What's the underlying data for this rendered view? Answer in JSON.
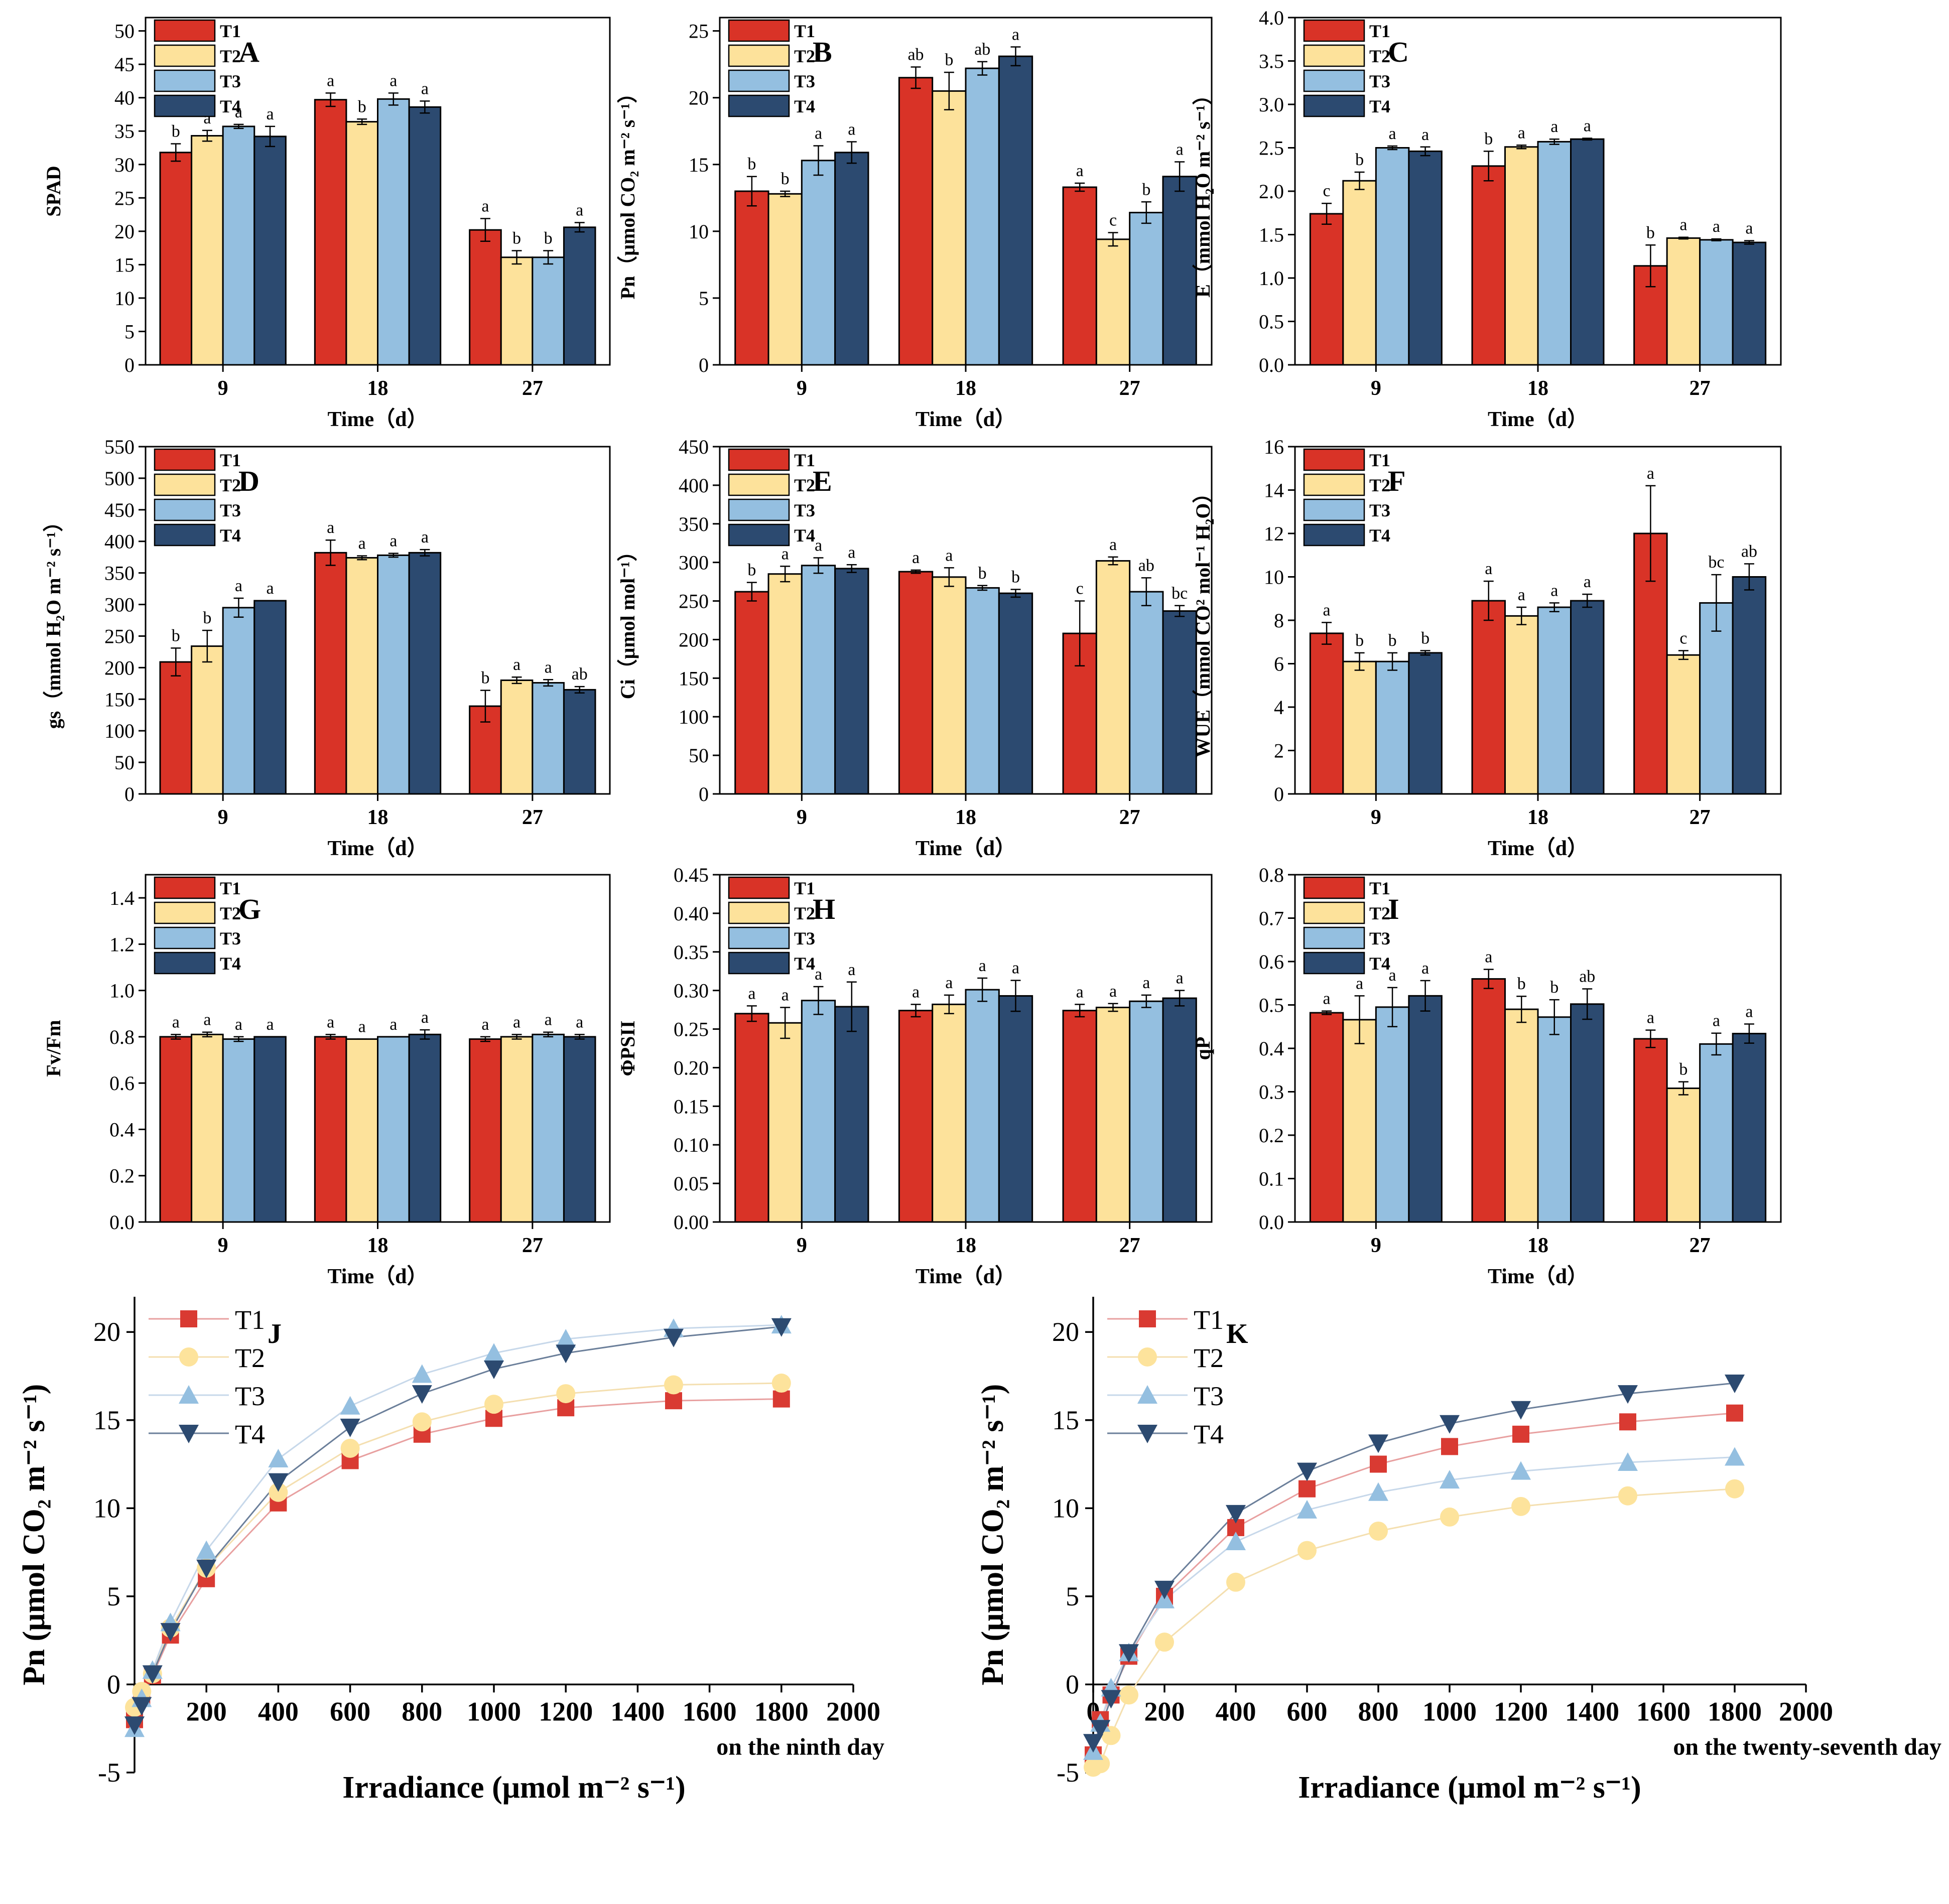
{
  "colors": {
    "T1": "#d93327",
    "T2": "#fde29b",
    "T3": "#94bfe0",
    "T4": "#2c4a70"
  },
  "chart_data": [
    {
      "id": "A",
      "type": "bar",
      "panel_label": "A",
      "xlabel": "Time（d）",
      "ylabel": "SPAD",
      "categories": [
        "9",
        "18",
        "27"
      ],
      "ylim": [
        0,
        52
      ],
      "yticks": [
        0,
        5,
        10,
        15,
        20,
        25,
        30,
        35,
        40,
        45,
        50
      ],
      "series": [
        {
          "name": "T1",
          "values": [
            31.8,
            39.7,
            20.2
          ],
          "errors": [
            1.3,
            1.0,
            1.7
          ],
          "letters": [
            "b",
            "a",
            "a"
          ]
        },
        {
          "name": "T2",
          "values": [
            34.3,
            36.4,
            16.1
          ],
          "errors": [
            0.8,
            0.4,
            1.0
          ],
          "letters": [
            "a",
            "b",
            "b"
          ]
        },
        {
          "name": "T3",
          "values": [
            35.7,
            39.8,
            16.1
          ],
          "errors": [
            0.3,
            0.9,
            1.0
          ],
          "letters": [
            "a",
            "a",
            "b"
          ]
        },
        {
          "name": "T4",
          "values": [
            34.2,
            38.6,
            20.6
          ],
          "errors": [
            1.5,
            0.9,
            0.7
          ],
          "letters": [
            "a",
            "a",
            "a"
          ]
        }
      ]
    },
    {
      "id": "B",
      "type": "bar",
      "panel_label": "B",
      "xlabel": "Time（d）",
      "ylabel": "Pn（μmol CO₂ m⁻² s⁻¹）",
      "categories": [
        "9",
        "18",
        "27"
      ],
      "ylim": [
        0,
        26
      ],
      "yticks": [
        0,
        5,
        10,
        15,
        20,
        25
      ],
      "series": [
        {
          "name": "T1",
          "values": [
            13.0,
            21.5,
            13.3
          ],
          "errors": [
            1.1,
            0.8,
            0.3
          ],
          "letters": [
            "b",
            "ab",
            "a"
          ]
        },
        {
          "name": "T2",
          "values": [
            12.8,
            20.5,
            9.4
          ],
          "errors": [
            0.2,
            1.4,
            0.5
          ],
          "letters": [
            "b",
            "b",
            "c"
          ]
        },
        {
          "name": "T3",
          "values": [
            15.3,
            22.2,
            11.4
          ],
          "errors": [
            1.1,
            0.5,
            0.8
          ],
          "letters": [
            "a",
            "ab",
            "b"
          ]
        },
        {
          "name": "T4",
          "values": [
            15.9,
            23.1,
            14.1
          ],
          "errors": [
            0.8,
            0.7,
            1.1
          ],
          "letters": [
            "a",
            "a",
            "a"
          ]
        }
      ]
    },
    {
      "id": "C",
      "type": "bar",
      "panel_label": "C",
      "xlabel": "Time（d）",
      "ylabel": "E（mmol H₂O m⁻² s⁻¹）",
      "categories": [
        "9",
        "18",
        "27"
      ],
      "ylim": [
        0,
        4.0
      ],
      "yticks": [
        0,
        0.5,
        1.0,
        1.5,
        2.0,
        2.5,
        3.0,
        3.5,
        4.0
      ],
      "decimals": 1,
      "series": [
        {
          "name": "T1",
          "values": [
            1.74,
            2.29,
            1.14
          ],
          "errors": [
            0.12,
            0.17,
            0.24
          ],
          "letters": [
            "c",
            "b",
            "b"
          ]
        },
        {
          "name": "T2",
          "values": [
            2.12,
            2.51,
            1.46
          ],
          "errors": [
            0.1,
            0.02,
            0.01
          ],
          "letters": [
            "b",
            "a",
            "a"
          ]
        },
        {
          "name": "T3",
          "values": [
            2.5,
            2.57,
            1.44
          ],
          "errors": [
            0.02,
            0.03,
            0.01
          ],
          "letters": [
            "a",
            "a",
            "a"
          ]
        },
        {
          "name": "T4",
          "values": [
            2.46,
            2.6,
            1.41
          ],
          "errors": [
            0.05,
            0.01,
            0.02
          ],
          "letters": [
            "a",
            "a",
            "a"
          ]
        }
      ]
    },
    {
      "id": "D",
      "type": "bar",
      "panel_label": "D",
      "xlabel": "Time（d）",
      "ylabel": "gs（mmol H₂O m⁻² s⁻¹）",
      "categories": [
        "9",
        "18",
        "27"
      ],
      "ylim": [
        0,
        550
      ],
      "yticks": [
        0,
        50,
        100,
        150,
        200,
        250,
        300,
        350,
        400,
        450,
        500,
        550
      ],
      "series": [
        {
          "name": "T1",
          "values": [
            209,
            382,
            139
          ],
          "errors": [
            22,
            20,
            25
          ],
          "letters": [
            "b",
            "a",
            "b"
          ]
        },
        {
          "name": "T2",
          "values": [
            234,
            374,
            180
          ],
          "errors": [
            25,
            3,
            5
          ],
          "letters": [
            "b",
            "a",
            "a"
          ]
        },
        {
          "name": "T3",
          "values": [
            295,
            378,
            176
          ],
          "errors": [
            15,
            3,
            5
          ],
          "letters": [
            "a",
            "a",
            "a"
          ]
        },
        {
          "name": "T4",
          "values": [
            306,
            382,
            165
          ],
          "errors": [
            0,
            5,
            5
          ],
          "letters": [
            "a",
            "a",
            "ab"
          ]
        }
      ]
    },
    {
      "id": "E",
      "type": "bar",
      "panel_label": "E",
      "xlabel": "Time（d）",
      "ylabel": "Ci（μmol mol⁻¹）",
      "categories": [
        "9",
        "18",
        "27"
      ],
      "ylim": [
        0,
        450
      ],
      "yticks": [
        0,
        50,
        100,
        150,
        200,
        250,
        300,
        350,
        400,
        450
      ],
      "series": [
        {
          "name": "T1",
          "values": [
            262,
            288,
            208
          ],
          "errors": [
            12,
            2,
            42
          ],
          "letters": [
            "b",
            "a",
            "c"
          ]
        },
        {
          "name": "T2",
          "values": [
            285,
            281,
            302
          ],
          "errors": [
            10,
            12,
            5
          ],
          "letters": [
            "a",
            "a",
            "a"
          ]
        },
        {
          "name": "T3",
          "values": [
            296,
            267,
            262
          ],
          "errors": [
            10,
            3,
            18
          ],
          "letters": [
            "a",
            "b",
            "ab"
          ]
        },
        {
          "name": "T4",
          "values": [
            292,
            260,
            237
          ],
          "errors": [
            5,
            5,
            7
          ],
          "letters": [
            "a",
            "b",
            "bc"
          ]
        }
      ]
    },
    {
      "id": "F",
      "type": "bar",
      "panel_label": "F",
      "xlabel": "Time（d）",
      "ylabel": "WUE（mmol CO² mol⁻¹ H₂O）",
      "categories": [
        "9",
        "18",
        "27"
      ],
      "ylim": [
        0,
        16
      ],
      "yticks": [
        0,
        2,
        4,
        6,
        8,
        10,
        12,
        14,
        16
      ],
      "series": [
        {
          "name": "T1",
          "values": [
            7.4,
            8.9,
            12.0
          ],
          "errors": [
            0.5,
            0.9,
            2.2
          ],
          "letters": [
            "a",
            "a",
            "a"
          ]
        },
        {
          "name": "T2",
          "values": [
            6.1,
            8.2,
            6.4
          ],
          "errors": [
            0.4,
            0.4,
            0.2
          ],
          "letters": [
            "b",
            "a",
            "c"
          ]
        },
        {
          "name": "T3",
          "values": [
            6.1,
            8.6,
            8.8
          ],
          "errors": [
            0.4,
            0.2,
            1.3
          ],
          "letters": [
            "b",
            "a",
            "bc"
          ]
        },
        {
          "name": "T4",
          "values": [
            6.5,
            8.9,
            10.0
          ],
          "errors": [
            0.1,
            0.3,
            0.6
          ],
          "letters": [
            "b",
            "a",
            "ab"
          ]
        }
      ]
    },
    {
      "id": "G",
      "type": "bar",
      "panel_label": "G",
      "xlabel": "Time（d）",
      "ylabel": "Fv/Fm",
      "categories": [
        "9",
        "18",
        "27"
      ],
      "ylim": [
        0,
        1.5
      ],
      "yticks": [
        0,
        0.2,
        0.4,
        0.6,
        0.8,
        1.0,
        1.2,
        1.4
      ],
      "decimals": 1,
      "series": [
        {
          "name": "T1",
          "values": [
            0.8,
            0.8,
            0.79
          ],
          "errors": [
            0.01,
            0.01,
            0.01
          ],
          "letters": [
            "a",
            "a",
            "a"
          ]
        },
        {
          "name": "T2",
          "values": [
            0.81,
            0.79,
            0.8
          ],
          "errors": [
            0.01,
            0.0,
            0.01
          ],
          "letters": [
            "a",
            "a",
            "a"
          ]
        },
        {
          "name": "T3",
          "values": [
            0.79,
            0.8,
            0.81
          ],
          "errors": [
            0.01,
            0.0,
            0.01
          ],
          "letters": [
            "a",
            "a",
            "a"
          ]
        },
        {
          "name": "T4",
          "values": [
            0.8,
            0.81,
            0.8
          ],
          "errors": [
            0.0,
            0.02,
            0.01
          ],
          "letters": [
            "a",
            "a",
            "a"
          ]
        }
      ]
    },
    {
      "id": "H",
      "type": "bar",
      "panel_label": "H",
      "xlabel": "Time（d）",
      "ylabel": "ΦPSII",
      "categories": [
        "9",
        "18",
        "27"
      ],
      "ylim": [
        0,
        0.45
      ],
      "yticks": [
        0,
        0.05,
        0.1,
        0.15,
        0.2,
        0.25,
        0.3,
        0.35,
        0.4,
        0.45
      ],
      "decimals": 2,
      "series": [
        {
          "name": "T1",
          "values": [
            0.27,
            0.274,
            0.274
          ],
          "errors": [
            0.01,
            0.008,
            0.008
          ],
          "letters": [
            "a",
            "a",
            "a"
          ]
        },
        {
          "name": "T2",
          "values": [
            0.258,
            0.282,
            0.278
          ],
          "errors": [
            0.02,
            0.012,
            0.005
          ],
          "letters": [
            "a",
            "a",
            "a"
          ]
        },
        {
          "name": "T3",
          "values": [
            0.287,
            0.301,
            0.286
          ],
          "errors": [
            0.018,
            0.015,
            0.008
          ],
          "letters": [
            "a",
            "a",
            "a"
          ]
        },
        {
          "name": "T4",
          "values": [
            0.279,
            0.293,
            0.29
          ],
          "errors": [
            0.032,
            0.02,
            0.01
          ],
          "letters": [
            "a",
            "a",
            "a"
          ]
        }
      ]
    },
    {
      "id": "I",
      "type": "bar",
      "panel_label": "I",
      "xlabel": "Time（d）",
      "ylabel": "qP",
      "categories": [
        "9",
        "18",
        "27"
      ],
      "ylim": [
        0,
        0.8
      ],
      "yticks": [
        0,
        0.1,
        0.2,
        0.3,
        0.4,
        0.5,
        0.6,
        0.7,
        0.8
      ],
      "decimals": 1,
      "series": [
        {
          "name": "T1",
          "values": [
            0.482,
            0.56,
            0.422
          ],
          "errors": [
            0.004,
            0.022,
            0.02
          ],
          "letters": [
            "a",
            "a",
            "a"
          ]
        },
        {
          "name": "T2",
          "values": [
            0.466,
            0.49,
            0.308
          ],
          "errors": [
            0.055,
            0.03,
            0.015
          ],
          "letters": [
            "a",
            "b",
            "b"
          ]
        },
        {
          "name": "T3",
          "values": [
            0.495,
            0.472,
            0.41
          ],
          "errors": [
            0.045,
            0.04,
            0.025
          ],
          "letters": [
            "a",
            "b",
            "a"
          ]
        },
        {
          "name": "T4",
          "values": [
            0.521,
            0.502,
            0.434
          ],
          "errors": [
            0.035,
            0.035,
            0.022
          ],
          "letters": [
            "a",
            "ab",
            "a"
          ]
        }
      ]
    },
    {
      "id": "J",
      "type": "line",
      "panel_label": "J",
      "caption": "on the ninth day",
      "xlabel": "Irradiance (μmol m⁻² s⁻¹)",
      "ylabel": "Pn (μmol CO₂ m⁻² s⁻¹)",
      "xlim": [
        0,
        2000
      ],
      "ylim": [
        -5,
        22
      ],
      "xticks": [
        0,
        200,
        400,
        600,
        800,
        1000,
        1200,
        1400,
        1600,
        1800,
        2000
      ],
      "yticks": [
        -5,
        0,
        5,
        10,
        15,
        20
      ],
      "x": [
        0,
        20,
        50,
        100,
        200,
        400,
        600,
        800,
        1000,
        1200,
        1500,
        1800
      ],
      "series": [
        {
          "name": "T1",
          "values": [
            -2.0,
            -0.8,
            0.5,
            2.8,
            6.0,
            10.3,
            12.7,
            14.2,
            15.1,
            15.7,
            16.1,
            16.2
          ]
        },
        {
          "name": "T2",
          "values": [
            -1.3,
            -0.4,
            0.6,
            3.2,
            6.6,
            10.9,
            13.4,
            14.9,
            15.9,
            16.5,
            17.0,
            17.1
          ]
        },
        {
          "name": "T3",
          "values": [
            -2.5,
            -0.8,
            0.8,
            3.5,
            7.6,
            12.8,
            15.8,
            17.6,
            18.8,
            19.6,
            20.2,
            20.4
          ]
        },
        {
          "name": "T4",
          "values": [
            -2.3,
            -1.2,
            0.6,
            3.0,
            6.6,
            11.5,
            14.6,
            16.5,
            17.9,
            18.8,
            19.7,
            20.3
          ]
        }
      ]
    },
    {
      "id": "K",
      "type": "line",
      "panel_label": "K",
      "caption": "on the twenty-seventh day",
      "xlabel": "Irradiance (μmol m⁻² s⁻¹)",
      "ylabel": "Pn (μmol CO₂ m⁻² s⁻¹)",
      "xlim": [
        0,
        2000
      ],
      "ylim": [
        -5,
        22
      ],
      "xticks": [
        0,
        200,
        400,
        600,
        800,
        1000,
        1200,
        1400,
        1600,
        1800,
        2000
      ],
      "yticks": [
        -5,
        0,
        5,
        10,
        15,
        20
      ],
      "x": [
        0,
        20,
        50,
        100,
        200,
        400,
        600,
        800,
        1000,
        1200,
        1500,
        1800
      ],
      "series": [
        {
          "name": "T1",
          "values": [
            -4.0,
            -2.0,
            -0.6,
            1.6,
            5.0,
            8.9,
            11.1,
            12.5,
            13.5,
            14.2,
            14.9,
            15.4
          ]
        },
        {
          "name": "T2",
          "values": [
            -4.7,
            -4.5,
            -2.9,
            -0.6,
            2.4,
            5.8,
            7.6,
            8.7,
            9.5,
            10.1,
            10.7,
            11.1
          ]
        },
        {
          "name": "T3",
          "values": [
            -3.8,
            -2.2,
            -0.2,
            1.8,
            4.8,
            8.1,
            9.9,
            10.9,
            11.6,
            12.1,
            12.6,
            12.9
          ]
        },
        {
          "name": "T4",
          "values": [
            -3.3,
            -2.5,
            -0.8,
            1.8,
            5.4,
            9.7,
            12.1,
            13.7,
            14.8,
            15.6,
            16.5,
            17.1
          ]
        }
      ]
    }
  ]
}
